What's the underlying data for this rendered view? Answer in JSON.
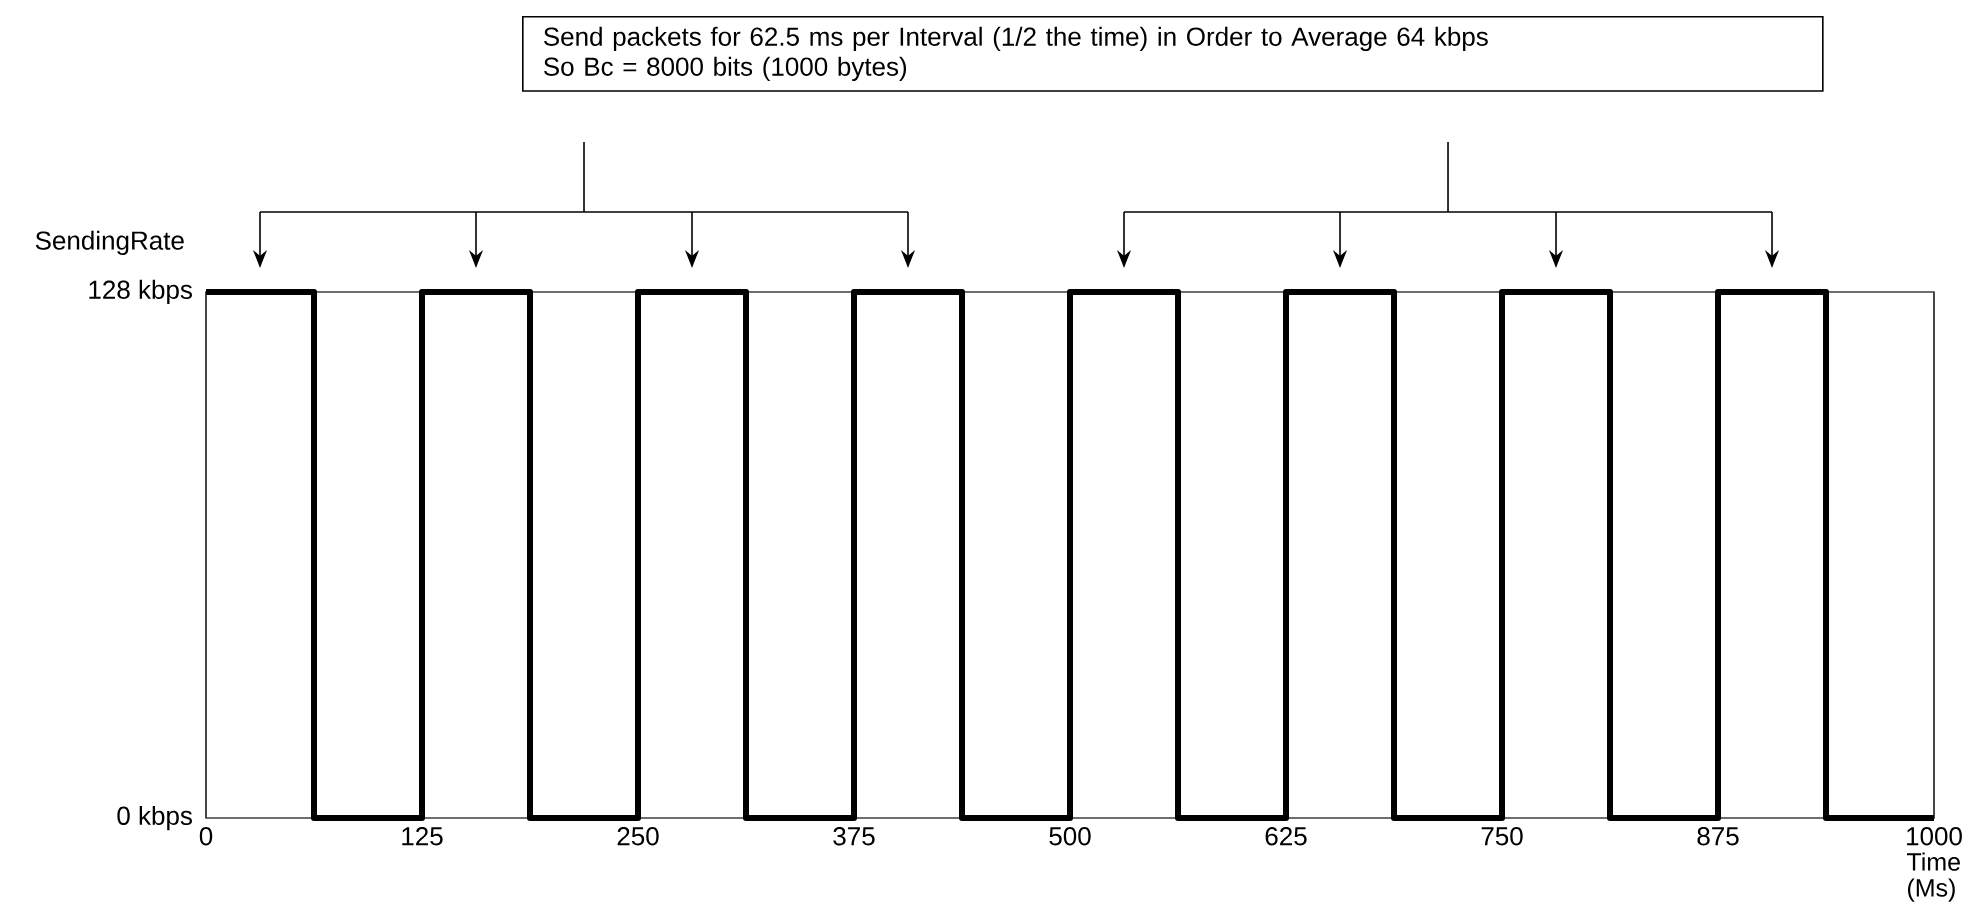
{
  "chart_data": {
    "type": "step",
    "ylabel": "SendingRate",
    "xlabel": "Time (Ms)",
    "annotations": [
      "Send packets for 62.5 ms per Interval (1/2 the time) in Order to Average 64 kbps",
      "So Bc = 8000 bits (1000 bytes)"
    ],
    "x": [
      0,
      62.5,
      125,
      187.5,
      250,
      312.5,
      375,
      437.5,
      500,
      562.5,
      625,
      687.5,
      750,
      812.5,
      875,
      937.5,
      1000
    ],
    "values": [
      128,
      0,
      128,
      0,
      128,
      0,
      128,
      0,
      128,
      0,
      128,
      0,
      128,
      0,
      128,
      0,
      0
    ],
    "color": "#000000",
    "xlim": [
      0,
      1000
    ],
    "xticks": [
      0,
      125,
      250,
      375,
      500,
      625,
      750,
      875,
      1000
    ],
    "ylim": [
      0,
      128
    ],
    "yticks": [
      {
        "value": 0,
        "label": "0 kbps"
      },
      {
        "value": 128,
        "label": "128 kbps"
      }
    ],
    "grid": "x",
    "marker": "none",
    "line_style": "solid"
  }
}
